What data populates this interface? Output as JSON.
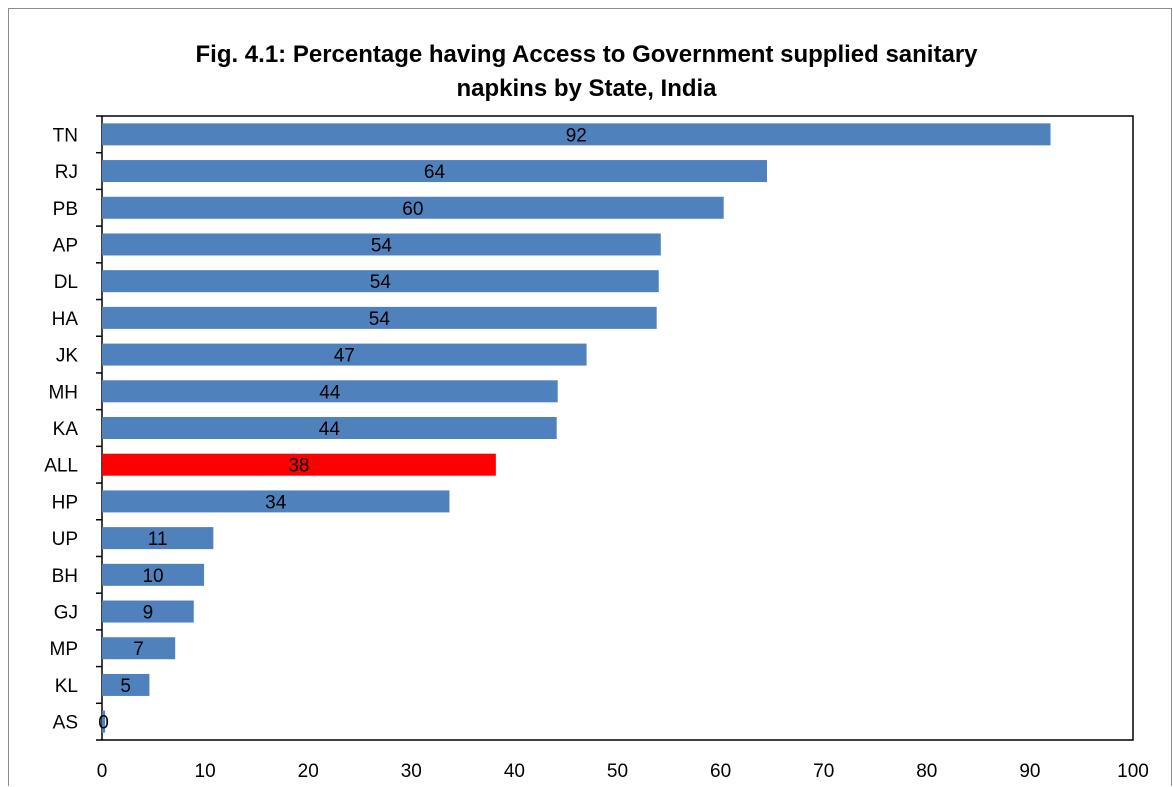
{
  "chart_data": {
    "type": "bar",
    "orientation": "horizontal",
    "title_lines": [
      "Fig. 4.1: Percentage having Access to Government supplied sanitary",
      "napkins by State, India"
    ],
    "categories": [
      "TN",
      "RJ",
      "PB",
      "AP",
      "DL",
      "HA",
      "JK",
      "MH",
      "KA",
      "ALL",
      "HP",
      "UP",
      "BH",
      "GJ",
      "MP",
      "KL",
      "AS"
    ],
    "values": [
      92,
      64.5,
      60.3,
      54.2,
      54,
      53.8,
      47,
      44.2,
      44.1,
      38.2,
      33.7,
      10.8,
      9.9,
      8.9,
      7.1,
      4.6,
      0.3
    ],
    "data_labels": [
      "92",
      "64",
      "60",
      "54",
      "54",
      "54",
      "47",
      "44",
      "44",
      "38",
      "34",
      "11",
      "10",
      "9",
      "7",
      "5",
      "0"
    ],
    "highlight_category": "ALL",
    "colors": {
      "bar": "#4f81bd",
      "highlight": "#ff0000",
      "axis": "#000000"
    },
    "xlim": [
      0,
      100
    ],
    "xticks": [
      "0",
      "10",
      "20",
      "30",
      "40",
      "50",
      "60",
      "70",
      "80",
      "90",
      "100"
    ],
    "xlabel": "",
    "ylabel": "",
    "grid": false,
    "legend": "none"
  }
}
